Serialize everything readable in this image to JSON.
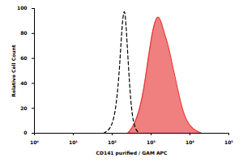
{
  "chart_data": {
    "type": "area",
    "x_label": "CD141 purified / GAM APC",
    "y_label": "Relative Cell Count",
    "log": "x",
    "xlim": [
      1,
      100000
    ],
    "xticks": [
      {
        "value": 1,
        "label": "10⁰"
      },
      {
        "value": 10,
        "label": "10¹"
      },
      {
        "value": 100,
        "label": "10²"
      },
      {
        "value": 1000,
        "label": "10³"
      },
      {
        "value": 10000,
        "label": "10⁴"
      },
      {
        "value": 100000,
        "label": "10⁵"
      }
    ],
    "ylim": [
      0,
      100
    ],
    "yticks": [
      0,
      20,
      40,
      60,
      80,
      100
    ],
    "series": [
      {
        "type": "line",
        "color": "#000000",
        "line_style": "dashed",
        "x": [
          60,
          90,
          120,
          150,
          170,
          190,
          210,
          230,
          260,
          300,
          350,
          420,
          500
        ],
        "values": [
          0,
          3,
          15,
          45,
          75,
          95,
          100,
          85,
          55,
          25,
          8,
          2,
          0
        ]
      },
      {
        "type": "area",
        "color": "#e83a3a",
        "line_style": "solid",
        "x": [
          250,
          350,
          500,
          650,
          800,
          1000,
          1200,
          1500,
          1800,
          2200,
          2800,
          3500,
          4500,
          6000,
          8000,
          12000,
          20000
        ],
        "values": [
          0,
          5,
          18,
          35,
          55,
          75,
          88,
          95,
          90,
          80,
          70,
          55,
          40,
          22,
          10,
          3,
          0
        ]
      }
    ]
  }
}
